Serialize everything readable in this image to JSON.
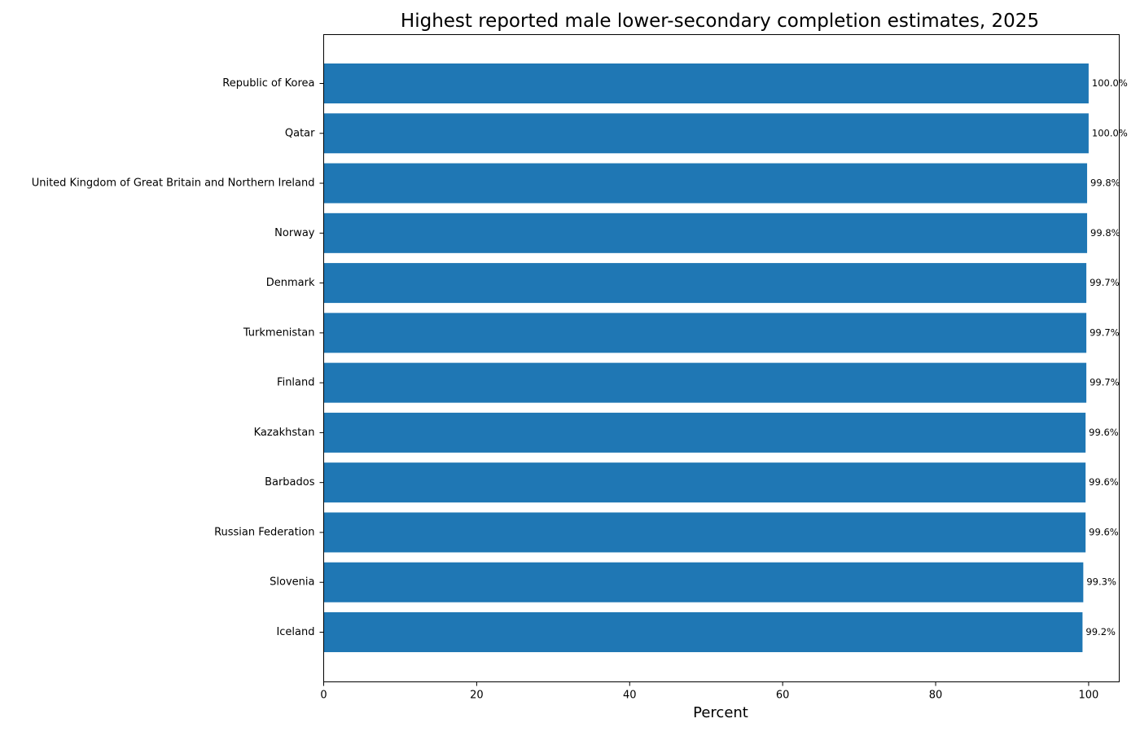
{
  "chart_data": {
    "type": "bar",
    "orientation": "horizontal",
    "title": "Highest reported male lower-secondary completion estimates, 2025",
    "xlabel": "Percent",
    "ylabel": "",
    "xlim": [
      0,
      104
    ],
    "x_ticks": [
      0,
      20,
      40,
      60,
      80,
      100
    ],
    "categories": [
      "Republic of Korea",
      "Qatar",
      "United Kingdom of Great Britain and Northern Ireland",
      "Norway",
      "Denmark",
      "Turkmenistan",
      "Finland",
      "Kazakhstan",
      "Barbados",
      "Russian Federation",
      "Slovenia",
      "Iceland"
    ],
    "values": [
      100.0,
      100.0,
      99.8,
      99.8,
      99.7,
      99.7,
      99.7,
      99.6,
      99.6,
      99.6,
      99.3,
      99.2
    ],
    "data_labels": [
      "100.0%",
      "100.0%",
      "99.8%",
      "99.8%",
      "99.7%",
      "99.7%",
      "99.7%",
      "99.6%",
      "99.6%",
      "99.6%",
      "99.3%",
      "99.2%"
    ],
    "bar_color": "#1f77b4",
    "grid": false,
    "legend": "none"
  }
}
